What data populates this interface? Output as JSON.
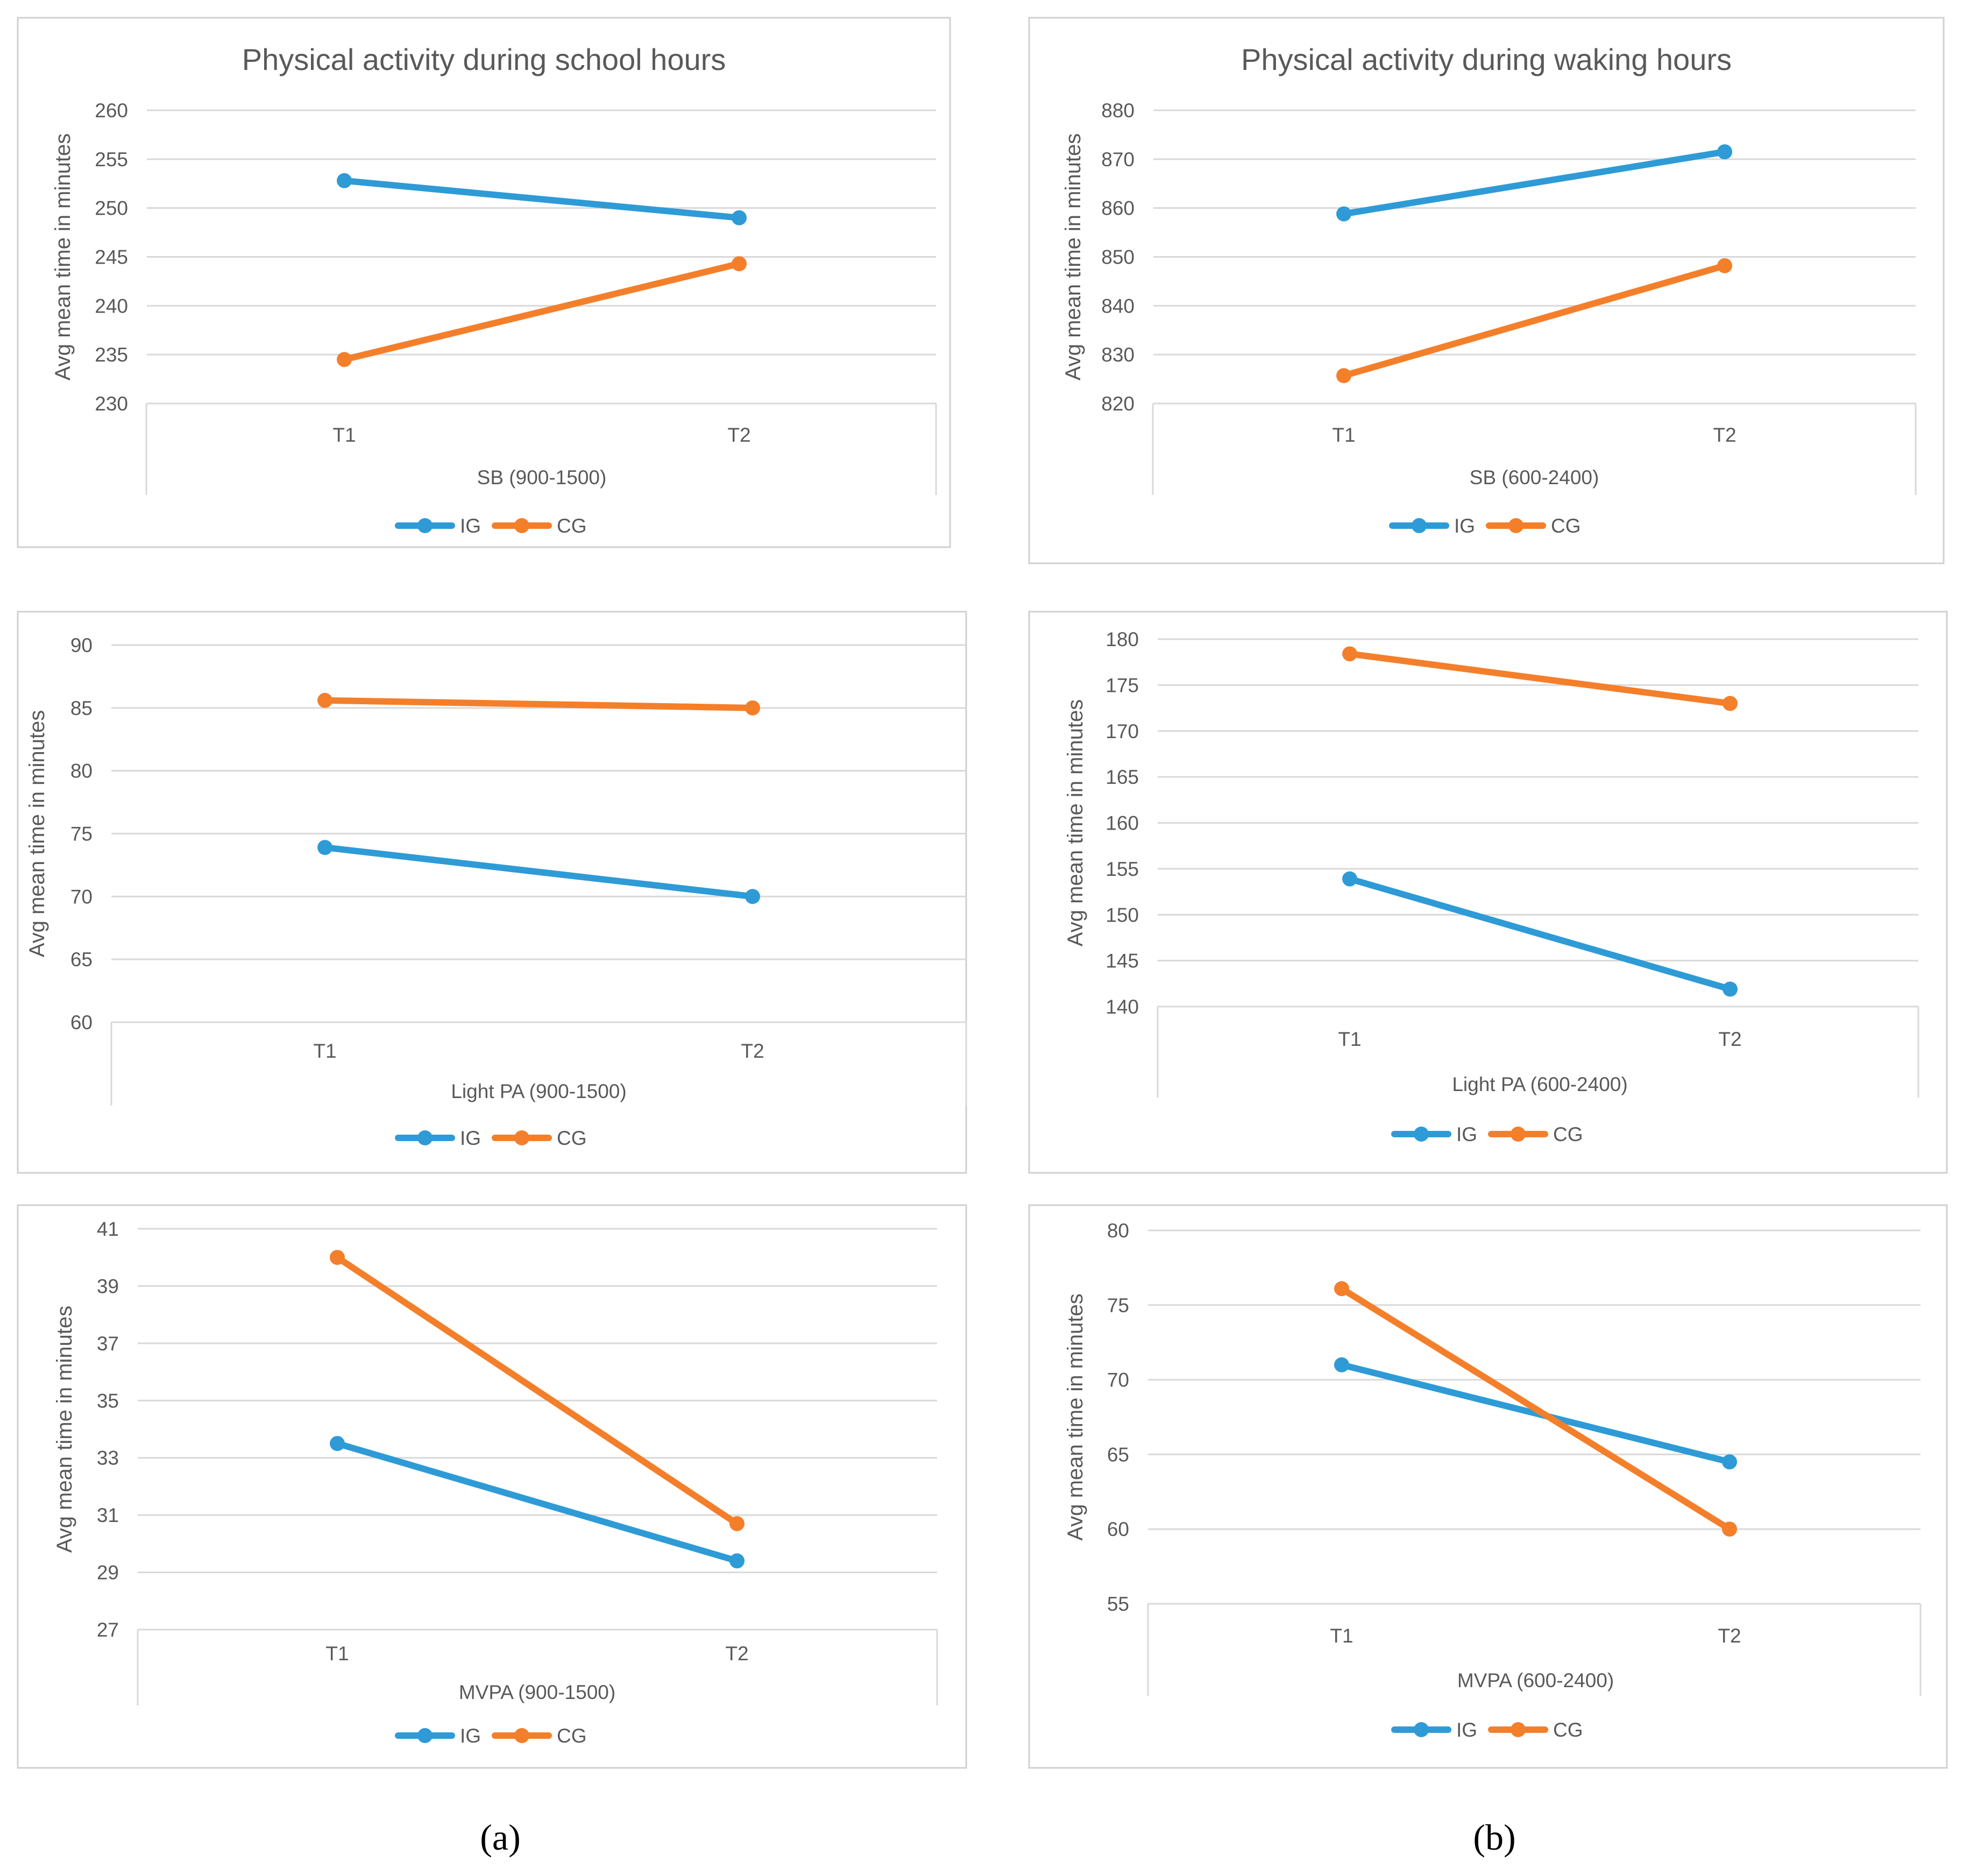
{
  "figure": {
    "caption_a": "(a)",
    "caption_b": "(b)"
  },
  "colors": {
    "IG": "#2E9BD6",
    "CG": "#F47F2B",
    "grid": "#D9D9D9",
    "text": "#595959",
    "border": "#D0D0D0"
  },
  "chart_data": [
    {
      "id": "sb-school",
      "type": "line",
      "title": "Physical activity during school hours",
      "xlabel": "SB (900-1500)",
      "ylabel": "Avg mean time in minutes",
      "categories": [
        "T1",
        "T2"
      ],
      "ylim": [
        230,
        260
      ],
      "yticks": [
        "260",
        "255",
        "250",
        "245",
        "240",
        "235",
        "230"
      ],
      "series": [
        {
          "name": "IG",
          "values": [
            252.8,
            249.0
          ]
        },
        {
          "name": "CG",
          "values": [
            234.5,
            244.3
          ]
        }
      ],
      "legend": [
        "IG",
        "CG"
      ],
      "legend_position": "bottom"
    },
    {
      "id": "sb-waking",
      "type": "line",
      "title": "Physical activity during waking hours",
      "xlabel": "SB (600-2400)",
      "ylabel": "Avg mean time in minutes",
      "categories": [
        "T1",
        "T2"
      ],
      "ylim": [
        820,
        880
      ],
      "yticks": [
        "880",
        "870",
        "860",
        "850",
        "840",
        "830",
        "820"
      ],
      "series": [
        {
          "name": "IG",
          "values": [
            858.8,
            871.5
          ]
        },
        {
          "name": "CG",
          "values": [
            825.7,
            848.2
          ]
        }
      ],
      "legend": [
        "IG",
        "CG"
      ],
      "legend_position": "bottom"
    },
    {
      "id": "light-school",
      "type": "line",
      "title": "",
      "xlabel": "Light PA (900-1500)",
      "ylabel": "Avg mean time in minutes",
      "categories": [
        "T1",
        "T2"
      ],
      "ylim": [
        60,
        90
      ],
      "yticks": [
        "90",
        "85",
        "80",
        "75",
        "70",
        "65",
        "60"
      ],
      "series": [
        {
          "name": "IG",
          "values": [
            73.9,
            70.0
          ]
        },
        {
          "name": "CG",
          "values": [
            85.6,
            85.0
          ]
        }
      ],
      "legend": [
        "IG",
        "CG"
      ],
      "legend_position": "bottom"
    },
    {
      "id": "light-waking",
      "type": "line",
      "title": "",
      "xlabel": "Light PA (600-2400)",
      "ylabel": "Avg mean time in minutes",
      "categories": [
        "T1",
        "T2"
      ],
      "ylim": [
        140,
        180
      ],
      "yticks": [
        "180",
        "175",
        "170",
        "165",
        "160",
        "155",
        "150",
        "145",
        "140"
      ],
      "series": [
        {
          "name": "IG",
          "values": [
            153.9,
            141.9
          ]
        },
        {
          "name": "CG",
          "values": [
            178.4,
            173.0
          ]
        }
      ],
      "legend": [
        "IG",
        "CG"
      ],
      "legend_position": "bottom"
    },
    {
      "id": "mvpa-school",
      "type": "line",
      "title": "",
      "xlabel": "MVPA (900-1500)",
      "ylabel": "Avg mean time in minutes",
      "categories": [
        "T1",
        "T2"
      ],
      "ylim": [
        27,
        41
      ],
      "yticks": [
        "41",
        "39",
        "37",
        "35",
        "33",
        "31",
        "29",
        "27"
      ],
      "series": [
        {
          "name": "IG",
          "values": [
            33.5,
            29.4
          ]
        },
        {
          "name": "CG",
          "values": [
            40.0,
            30.7
          ]
        }
      ],
      "legend": [
        "IG",
        "CG"
      ],
      "legend_position": "bottom"
    },
    {
      "id": "mvpa-waking",
      "type": "line",
      "title": "",
      "xlabel": "MVPA (600-2400)",
      "ylabel": "Avg mean time in minutes",
      "categories": [
        "T1",
        "T2"
      ],
      "ylim": [
        55,
        80
      ],
      "yticks": [
        "80",
        "75",
        "70",
        "65",
        "60",
        "55"
      ],
      "series": [
        {
          "name": "IG",
          "values": [
            71.0,
            64.5
          ]
        },
        {
          "name": "CG",
          "values": [
            76.1,
            60.0
          ]
        }
      ],
      "legend": [
        "IG",
        "CG"
      ],
      "legend_position": "bottom"
    }
  ]
}
